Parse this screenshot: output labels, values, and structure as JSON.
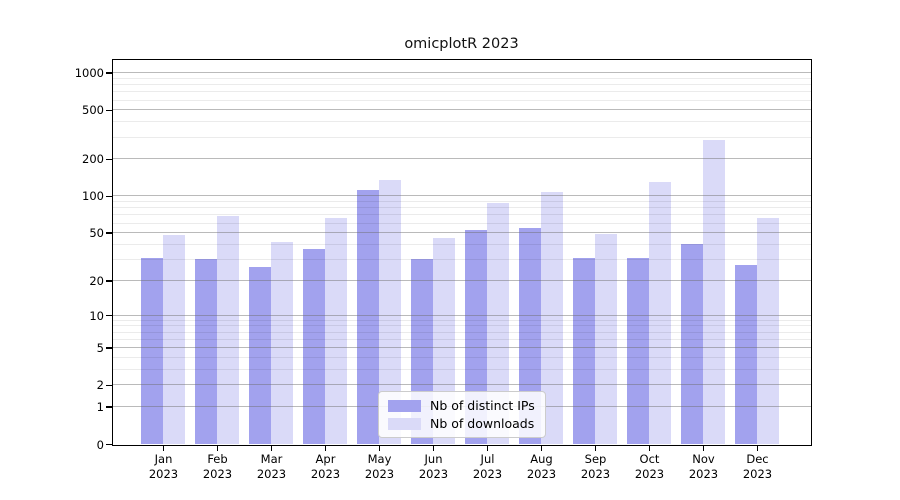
{
  "title": "omicplotR 2023",
  "colors": {
    "distinct_ips_bar": "#a2a2ee",
    "downloads_bar": "#dadaf8",
    "grid_major": "rgba(110,110,110,0.48)",
    "grid_minor": "rgba(0,0,0,0.08)",
    "axis": "#000000",
    "legend_border": "#cccccc"
  },
  "chart_data": {
    "type": "bar",
    "title": "omicplotR 2023",
    "yscale": "log1p",
    "ylim": [
      0,
      1270
    ],
    "grid": true,
    "legend_position": "lower center",
    "y_ticks": [
      1000,
      500,
      200,
      100,
      50,
      20,
      10,
      5,
      2,
      1,
      0
    ],
    "y_minor_ticks": [
      900,
      800,
      700,
      600,
      400,
      300,
      90,
      80,
      70,
      60,
      40,
      30,
      9,
      8,
      7,
      6,
      4,
      3
    ],
    "categories": [
      "Jan",
      "Feb",
      "Mar",
      "Apr",
      "May",
      "Jun",
      "Jul",
      "Aug",
      "Sep",
      "Oct",
      "Nov",
      "Dec"
    ],
    "x_year_label": "2023",
    "series": [
      {
        "name": "Nb of distinct IPs",
        "color": "#a2a2ee",
        "values": [
          31,
          30,
          26,
          37,
          112,
          30,
          53,
          55,
          31,
          31,
          40,
          27
        ]
      },
      {
        "name": "Nb of downloads",
        "color": "#dadaf8",
        "values": [
          48,
          68,
          42,
          66,
          135,
          45,
          88,
          108,
          49,
          130,
          285,
          66
        ]
      }
    ]
  }
}
